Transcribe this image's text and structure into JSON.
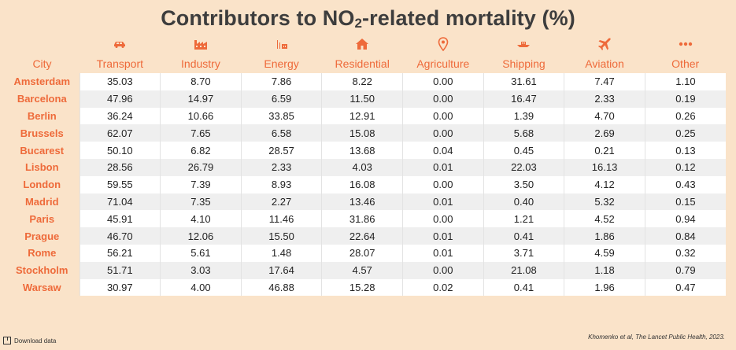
{
  "title_prefix": "Contributors to NO",
  "title_sub": "2",
  "title_suffix": "-related mortality (%)",
  "source": "Khomenko et al, The Lancet Public Health, 2023.",
  "download_label": "Download data",
  "colors": {
    "accent": "#ee6a3a",
    "background": "#fae3c9",
    "row_odd": "#ffffff",
    "row_even": "#efefef"
  },
  "chart_data": {
    "type": "table",
    "title": "Contributors to NO2-related mortality (%)",
    "columns": [
      {
        "label": "City",
        "icon": ""
      },
      {
        "label": "Transport",
        "icon": "car-icon"
      },
      {
        "label": "Industry",
        "icon": "factory-icon"
      },
      {
        "label": "Energy",
        "icon": "energy-icon"
      },
      {
        "label": "Residential",
        "icon": "house-icon"
      },
      {
        "label": "Agriculture",
        "icon": "pin-icon"
      },
      {
        "label": "Shipping",
        "icon": "ship-icon"
      },
      {
        "label": "Aviation",
        "icon": "plane-icon"
      },
      {
        "label": "Other",
        "icon": "dots-icon"
      }
    ],
    "rows": [
      [
        "Amsterdam",
        "35.03",
        "8.70",
        "7.86",
        "8.22",
        "0.00",
        "31.61",
        "7.47",
        "1.10"
      ],
      [
        "Barcelona",
        "47.96",
        "14.97",
        "6.59",
        "11.50",
        "0.00",
        "16.47",
        "2.33",
        "0.19"
      ],
      [
        "Berlin",
        "36.24",
        "10.66",
        "33.85",
        "12.91",
        "0.00",
        "1.39",
        "4.70",
        "0.26"
      ],
      [
        "Brussels",
        "62.07",
        "7.65",
        "6.58",
        "15.08",
        "0.00",
        "5.68",
        "2.69",
        "0.25"
      ],
      [
        "Bucarest",
        "50.10",
        "6.82",
        "28.57",
        "13.68",
        "0.04",
        "0.45",
        "0.21",
        "0.13"
      ],
      [
        "Lisbon",
        "28.56",
        "26.79",
        "2.33",
        "4.03",
        "0.01",
        "22.03",
        "16.13",
        "0.12"
      ],
      [
        "London",
        "59.55",
        "7.39",
        "8.93",
        "16.08",
        "0.00",
        "3.50",
        "4.12",
        "0.43"
      ],
      [
        "Madrid",
        "71.04",
        "7.35",
        "2.27",
        "13.46",
        "0.01",
        "0.40",
        "5.32",
        "0.15"
      ],
      [
        "Paris",
        "45.91",
        "4.10",
        "11.46",
        "31.86",
        "0.00",
        "1.21",
        "4.52",
        "0.94"
      ],
      [
        "Prague",
        "46.70",
        "12.06",
        "15.50",
        "22.64",
        "0.01",
        "0.41",
        "1.86",
        "0.84"
      ],
      [
        "Rome",
        "56.21",
        "5.61",
        "1.48",
        "28.07",
        "0.01",
        "3.71",
        "4.59",
        "0.32"
      ],
      [
        "Stockholm",
        "51.71",
        "3.03",
        "17.64",
        "4.57",
        "0.00",
        "21.08",
        "1.18",
        "0.79"
      ],
      [
        "Warsaw",
        "30.97",
        "4.00",
        "46.88",
        "15.28",
        "0.02",
        "0.41",
        "1.96",
        "0.47"
      ]
    ]
  }
}
